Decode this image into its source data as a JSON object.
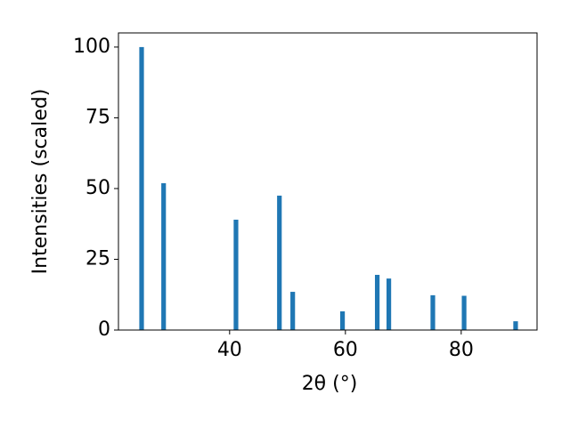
{
  "chart_data": {
    "type": "bar",
    "x_label": "2θ (°)",
    "y_label": "Intensities (scaled)",
    "x": [
      24.8,
      28.6,
      41.1,
      48.6,
      50.9,
      59.5,
      65.5,
      67.5,
      75.1,
      80.5,
      89.4
    ],
    "values": [
      100,
      51.9,
      39.0,
      47.5,
      13.5,
      6.6,
      19.5,
      18.2,
      12.3,
      12.1,
      3.1
    ],
    "color": "#1f77b4",
    "xlim": [
      20.8,
      93.1
    ],
    "ylim": [
      0,
      105
    ],
    "xticks": [
      40,
      60,
      80
    ],
    "yticks": [
      0,
      25,
      50,
      75,
      100
    ]
  }
}
